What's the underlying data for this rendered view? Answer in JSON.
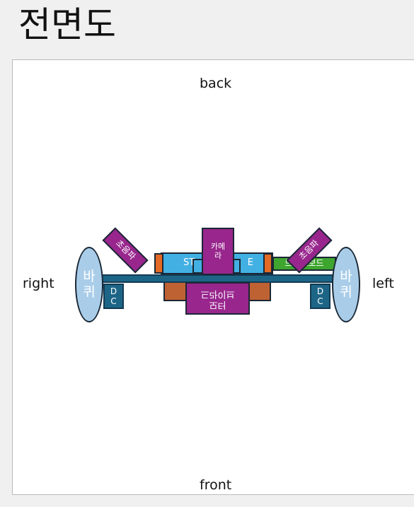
{
  "page": {
    "title": "전면도"
  },
  "view": {
    "back": "back",
    "front": "front",
    "right": "right",
    "left": "left"
  },
  "parts": {
    "wheel_right": "바\n퀴",
    "wheel_left": "바\n퀴",
    "dc_right": "D\nC",
    "dc_left": "D\nC",
    "camera": "카메\n라",
    "sensor_left": "초음파",
    "sensor_right": "초음파",
    "center_unit": "ST",
    "center_unit_suffix": "E",
    "motor_lines": [
      "모터",
      "드라이브"
    ],
    "green_board": "브레드보드"
  },
  "colors": {
    "shaft": "#1d6587",
    "wheel": "#a9cde9",
    "orange": "#bf6233",
    "bracket": "#e36a25",
    "blue": "#43b0e3",
    "purple": "#98268d",
    "green": "#3ea62f"
  }
}
